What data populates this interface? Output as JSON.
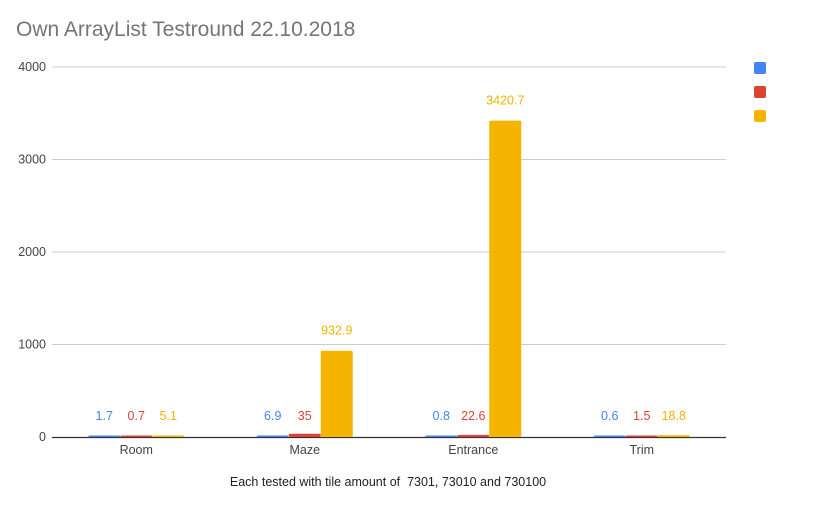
{
  "chart_data": {
    "type": "bar",
    "title": "Own ArrayList Testround 22.10.2018",
    "xlabel": "Each tested with tile amount of  7301, 73010 and 730100",
    "ylabel": "",
    "ylim": [
      0,
      4000
    ],
    "yticks": [
      "0",
      "1000",
      "2000",
      "3000",
      "4000"
    ],
    "categories": [
      "Room",
      "Maze",
      "Entrance",
      "Trim"
    ],
    "grid": true,
    "legend_position": "right",
    "series": [
      {
        "color": "#4285f4",
        "values": [
          1.7,
          6.9,
          0.8,
          0.6
        ],
        "labels": [
          "1.7",
          "6.9",
          "0.8",
          "0.6"
        ]
      },
      {
        "color": "#db4437",
        "values": [
          0.7,
          35,
          22.6,
          1.5
        ],
        "labels": [
          "0.7",
          "35",
          "22.6",
          "1.5"
        ]
      },
      {
        "color": "#f4b400",
        "values": [
          5.1,
          932.9,
          3420.7,
          18.8
        ],
        "labels": [
          "5.1",
          "932.9",
          "3420.7",
          "18.8"
        ]
      }
    ]
  }
}
